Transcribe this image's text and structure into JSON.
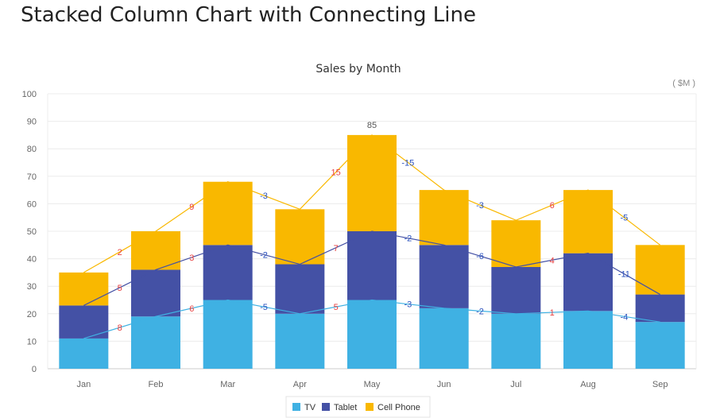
{
  "page": {
    "title": "Stacked Column Chart with Connecting Line"
  },
  "chart_data": {
    "type": "bar",
    "stacked": true,
    "title": "Sales by Month",
    "unit_label": "( $M )",
    "categories": [
      "Jan",
      "Feb",
      "Mar",
      "Apr",
      "May",
      "Jun",
      "Jul",
      "Aug",
      "Sep"
    ],
    "series": [
      {
        "name": "TV",
        "color": "#3fb1e3",
        "values": [
          11,
          19,
          25,
          20,
          25,
          22,
          20,
          21,
          17
        ],
        "diffs": [
          "8",
          "6",
          "-5",
          "5",
          "-3",
          "-2",
          "1",
          "-4"
        ]
      },
      {
        "name": "Tablet",
        "color": "#4451a5",
        "values": [
          12,
          17,
          20,
          18,
          25,
          23,
          17,
          21,
          10
        ],
        "diffs": [
          "5",
          "3",
          "-2",
          "7",
          "-2",
          "-6",
          "4",
          "-11"
        ]
      },
      {
        "name": "Cell Phone",
        "color": "#f9b800",
        "values": [
          12,
          14,
          23,
          20,
          35,
          20,
          17,
          23,
          18
        ],
        "diffs": [
          "2",
          "9",
          "-3",
          "15",
          "-15",
          "-3",
          "6",
          "-5"
        ]
      }
    ],
    "top_label": {
      "category": "May",
      "text": "85"
    },
    "y_ticks": [
      "0",
      "10",
      "20",
      "30",
      "40",
      "50",
      "60",
      "70",
      "80",
      "90",
      "100"
    ],
    "ylim": [
      0,
      100
    ],
    "grid": true,
    "legend_position": "bottom-center"
  }
}
